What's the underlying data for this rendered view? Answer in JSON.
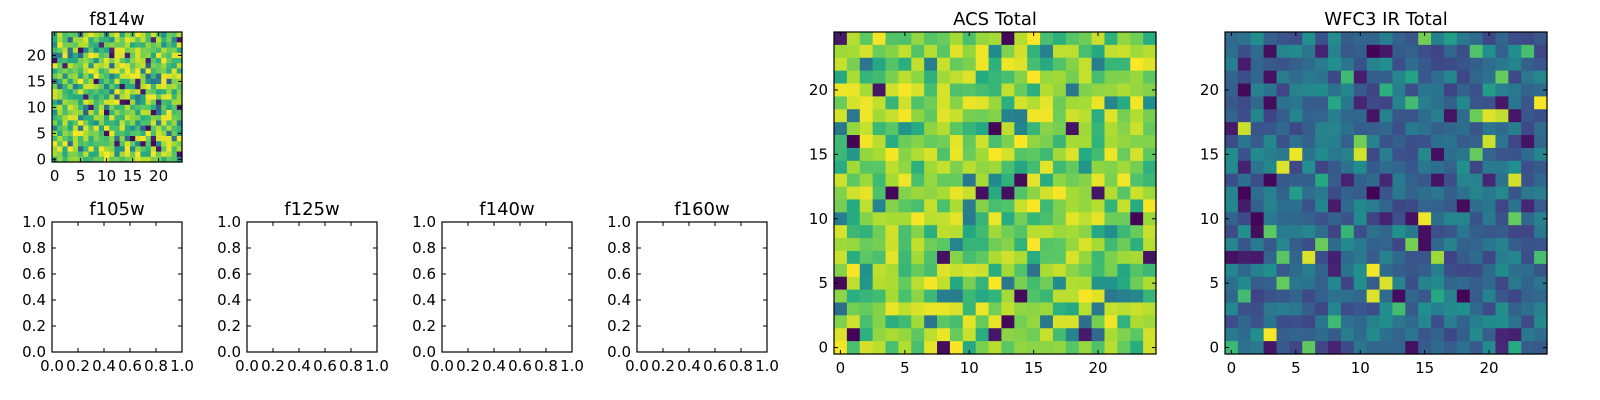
{
  "chart_data": [
    {
      "id": "f814w",
      "type": "heatmap",
      "title": "f814w",
      "xticks": [
        "0",
        "5",
        "10",
        "15",
        "20"
      ],
      "yticks": [
        "0",
        "5",
        "10",
        "15",
        "20"
      ],
      "xlim": [
        -0.5,
        24.5
      ],
      "ylim": [
        -0.5,
        24.5
      ],
      "grid_size": 25,
      "colormap": "viridis",
      "clim": [
        0.0,
        1.0
      ],
      "seed": 814,
      "note": ""
    },
    {
      "id": "f105w",
      "type": "heatmap",
      "title": "f105w",
      "xticks": [
        "0.0",
        "0.2",
        "0.4",
        "0.6",
        "0.8",
        "1.0"
      ],
      "yticks": [
        "0.0",
        "0.2",
        "0.4",
        "0.6",
        "0.8",
        "1.0"
      ],
      "xlim": [
        0.0,
        1.0
      ],
      "ylim": [
        0.0,
        1.0
      ],
      "empty": true
    },
    {
      "id": "f125w",
      "type": "heatmap",
      "title": "f125w",
      "xticks": [
        "0.0",
        "0.2",
        "0.4",
        "0.6",
        "0.8",
        "1.0"
      ],
      "yticks": [
        "0.0",
        "0.2",
        "0.4",
        "0.6",
        "0.8",
        "1.0"
      ],
      "xlim": [
        0.0,
        1.0
      ],
      "ylim": [
        0.0,
        1.0
      ],
      "empty": true
    },
    {
      "id": "f140w",
      "type": "heatmap",
      "title": "f140w",
      "xticks": [
        "0.0",
        "0.2",
        "0.4",
        "0.6",
        "0.8",
        "1.0"
      ],
      "yticks": [
        "0.0",
        "0.2",
        "0.4",
        "0.6",
        "0.8",
        "1.0"
      ],
      "xlim": [
        0.0,
        1.0
      ],
      "ylim": [
        0.0,
        1.0
      ],
      "empty": true
    },
    {
      "id": "f160w",
      "type": "heatmap",
      "title": "f160w",
      "xticks": [
        "0.0",
        "0.2",
        "0.4",
        "0.6",
        "0.8",
        "1.0"
      ],
      "yticks": [
        "0.0",
        "0.2",
        "0.4",
        "0.6",
        "0.8",
        "1.0"
      ],
      "xlim": [
        0.0,
        1.0
      ],
      "ylim": [
        0.0,
        1.0
      ],
      "empty": true
    },
    {
      "id": "acs-total",
      "type": "heatmap",
      "title": "ACS Total",
      "xticks": [
        "0",
        "5",
        "10",
        "15",
        "20"
      ],
      "yticks": [
        "0",
        "5",
        "10",
        "15",
        "20"
      ],
      "xlim": [
        -0.5,
        24.5
      ],
      "ylim": [
        -0.5,
        24.5
      ],
      "grid_size": 25,
      "colormap": "viridis",
      "clim": [
        0.0,
        1.0
      ],
      "seed": 2024
    },
    {
      "id": "wfc3-ir-total",
      "type": "heatmap",
      "title": "WFC3 IR Total",
      "xticks": [
        "0",
        "5",
        "10",
        "15",
        "20"
      ],
      "yticks": [
        "0",
        "5",
        "10",
        "15",
        "20"
      ],
      "xlim": [
        -0.5,
        24.5
      ],
      "ylim": [
        -0.5,
        24.5
      ],
      "grid_size": 25,
      "colormap": "viridis",
      "clim": [
        0.0,
        1.0
      ],
      "seed": 1160
    }
  ],
  "colors": {
    "frame": "#000000",
    "background": "#ffffff"
  }
}
